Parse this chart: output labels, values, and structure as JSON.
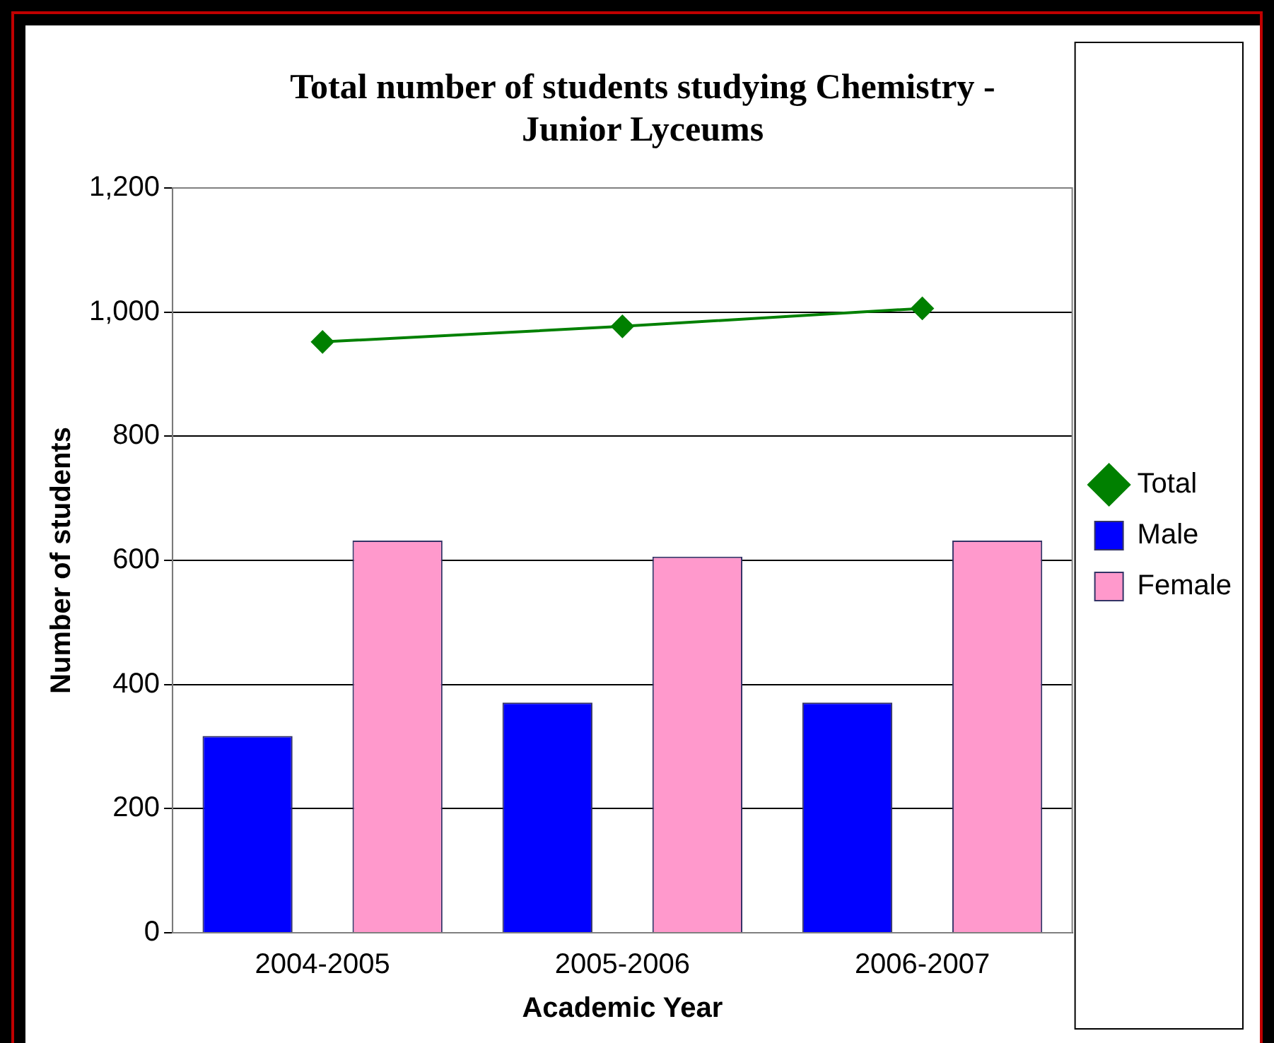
{
  "chart_data": {
    "type": "bar",
    "title": [
      "Total number of students studying Chemistry -",
      "Junior Lyceums"
    ],
    "xlabel": "Academic Year",
    "ylabel": "Number of students",
    "categories": [
      "2004-2005",
      "2005-2006",
      "2006-2007"
    ],
    "series": [
      {
        "name": "Male",
        "color": "#0000ff",
        "values": [
          317,
          371,
          371
        ]
      },
      {
        "name": "Female",
        "color": "#ff99cc",
        "values": [
          632,
          606,
          632
        ]
      },
      {
        "name": "Total",
        "type": "line",
        "color": "#008000",
        "values": [
          952,
          977,
          1006
        ]
      }
    ],
    "ylim": [
      0,
      1200
    ],
    "yticks": [
      0,
      200,
      400,
      600,
      800,
      {
        "value": 1000,
        "label": "1,000"
      },
      {
        "value": 1200,
        "label": "1,200"
      }
    ],
    "grid": "y",
    "legend": "right",
    "marker": "diamond",
    "line_style": "solid"
  }
}
